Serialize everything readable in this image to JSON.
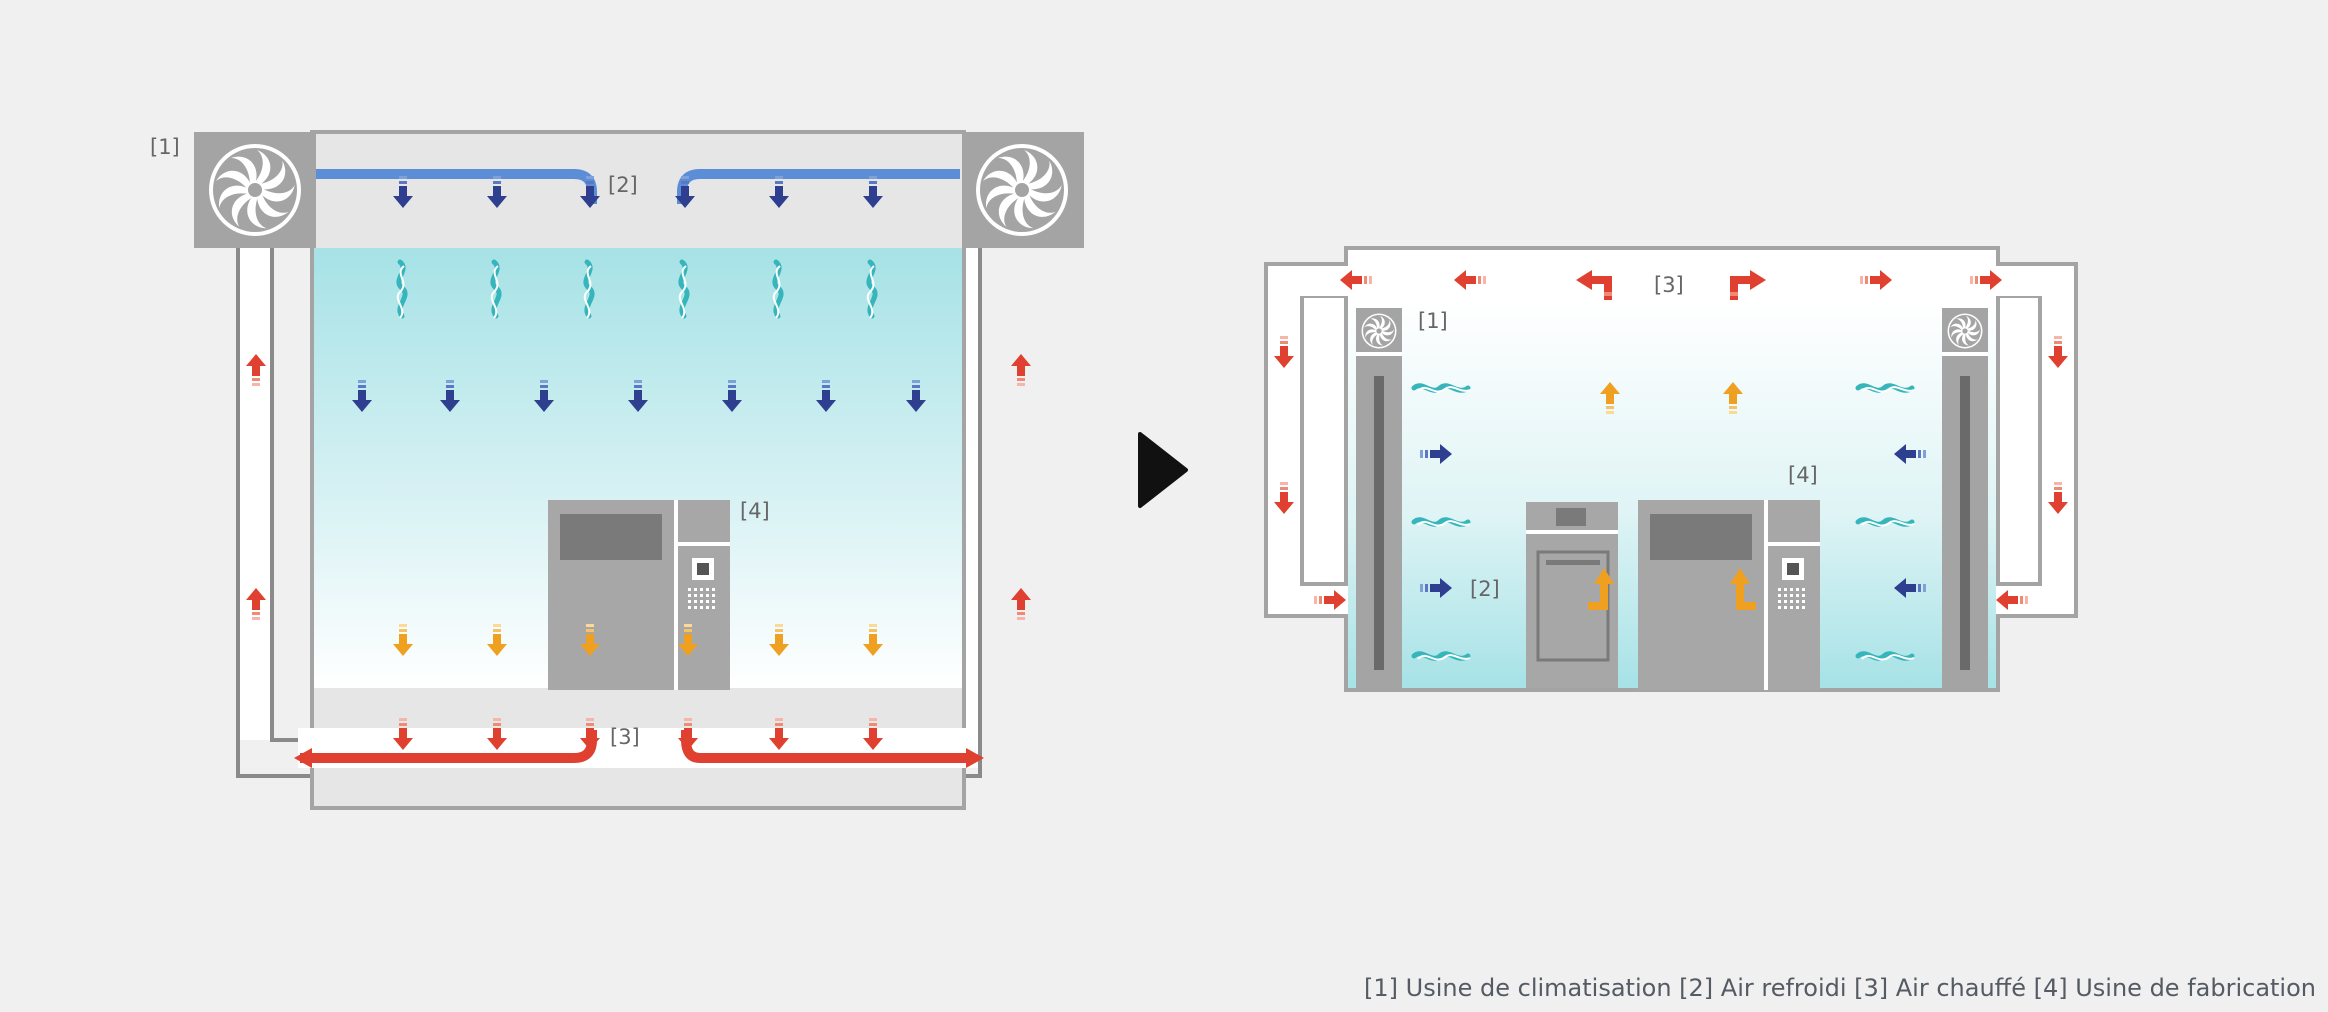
{
  "colors": {
    "background": "#f0f0f0",
    "cold_air": "#2e3f8f",
    "cold_duct": "#5b8ed6",
    "hot_air": "#e0402f",
    "warm_air": "#f0a020",
    "cleanroom": "#a6e2e6",
    "wall": "#a4a4a4",
    "machine": "#a7a7a7"
  },
  "icons": [
    "fan-icon",
    "play-arrow-icon",
    "air-flow-arrow-icon",
    "swirl-icon"
  ],
  "left_diagram": {
    "labels": {
      "air_handler": "[1]",
      "cooled_air": "[2]",
      "heated_air": "[3]",
      "machine": "[4]"
    }
  },
  "right_diagram": {
    "labels": {
      "air_handler": "[1]",
      "cooled_air": "[2]",
      "heated_air": "[3]",
      "machine": "[4]"
    }
  },
  "caption": "[1] Usine de climatisation [2] Air refroidi [3] Air chauffé [4] Usine de fabrication"
}
